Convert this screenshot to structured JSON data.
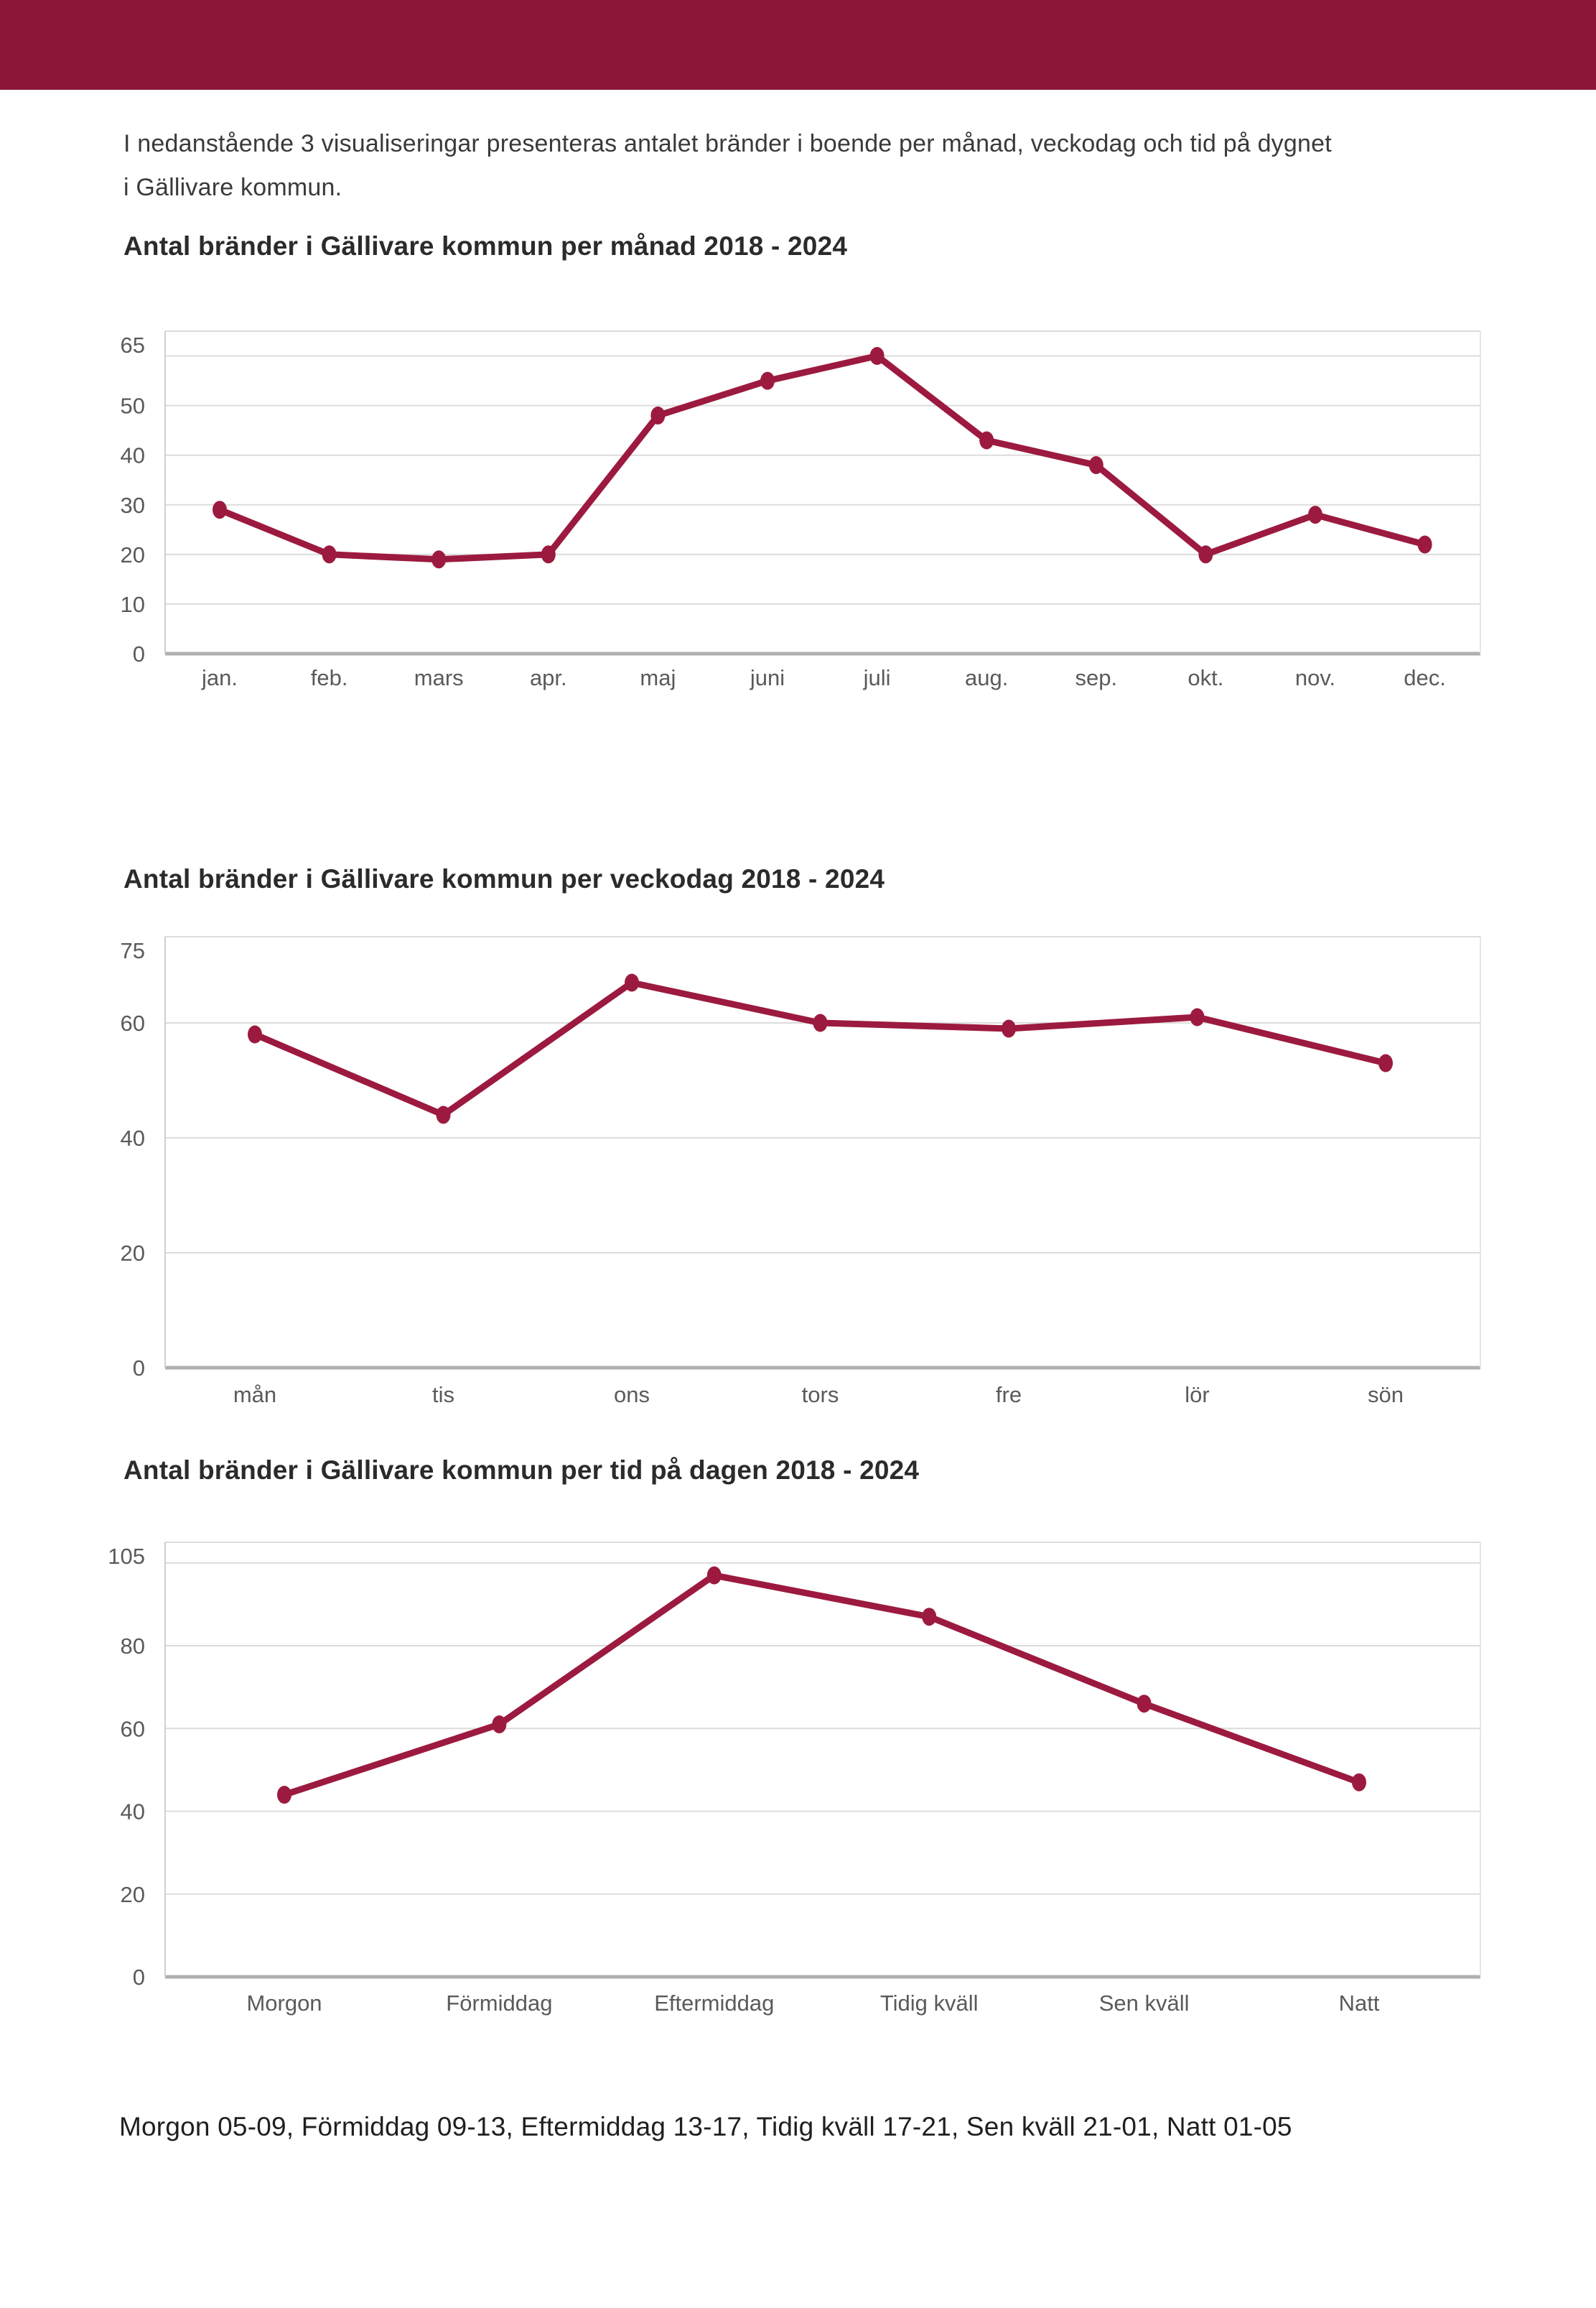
{
  "page": {
    "header_color": "#8c1538",
    "accent_line_color": "#9c1a3f",
    "grid_color": "#dcdcdc",
    "axis_color": "#b0b0b0",
    "tick_label_color": "#5a5a5a",
    "intro_line1": "I nedanstående 3 visualiseringar presenteras antalet bränder i boende per månad, veckodag och tid på dygnet",
    "intro_line2": "i Gällivare kommun.",
    "footer": "Morgon 05-09, Förmiddag 09-13, Eftermiddag 13-17, Tidig kväll 17-21, Sen kväll 21-01, Natt 01-05"
  },
  "chart_data": [
    {
      "type": "line",
      "title": "Antal bränder i Gällivare kommun per månad 2018 - 2024",
      "categories": [
        "jan.",
        "feb.",
        "mars",
        "apr.",
        "maj",
        "juni",
        "juli",
        "aug.",
        "sep.",
        "okt.",
        "nov.",
        "dec."
      ],
      "values": [
        29,
        20,
        19,
        20,
        48,
        55,
        60,
        43,
        38,
        20,
        28,
        22
      ],
      "xlabel": "",
      "ylabel": "",
      "ylim": [
        0,
        65
      ],
      "yticks": [
        65,
        50,
        40,
        30,
        20,
        10,
        0
      ],
      "gridlines": [
        65,
        60,
        50,
        40,
        30,
        20,
        10,
        0
      ],
      "grid": true,
      "legend": "none"
    },
    {
      "type": "line",
      "title": "Antal bränder i Gällivare kommun per veckodag 2018 - 2024",
      "categories": [
        "mån",
        "tis",
        "ons",
        "tors",
        "fre",
        "lör",
        "sön"
      ],
      "values": [
        58,
        44,
        67,
        60,
        59,
        61,
        53
      ],
      "xlabel": "",
      "ylabel": "",
      "ylim": [
        0,
        75
      ],
      "yticks": [
        75,
        60,
        40,
        20,
        0
      ],
      "gridlines": [
        75,
        60,
        40,
        20,
        0
      ],
      "grid": true,
      "legend": "none"
    },
    {
      "type": "line",
      "title": "Antal bränder i Gällivare kommun per tid på dagen 2018 - 2024",
      "categories": [
        "Morgon",
        "Förmiddag",
        "Eftermiddag",
        "Tidig kväll",
        "Sen kväll",
        "Natt"
      ],
      "values": [
        44,
        61,
        97,
        87,
        66,
        47
      ],
      "xlabel": "",
      "ylabel": "",
      "ylim": [
        0,
        105
      ],
      "yticks": [
        105,
        80,
        60,
        40,
        20,
        0
      ],
      "gridlines": [
        105,
        100,
        80,
        60,
        40,
        20,
        0
      ],
      "grid": true,
      "legend": "none"
    }
  ]
}
